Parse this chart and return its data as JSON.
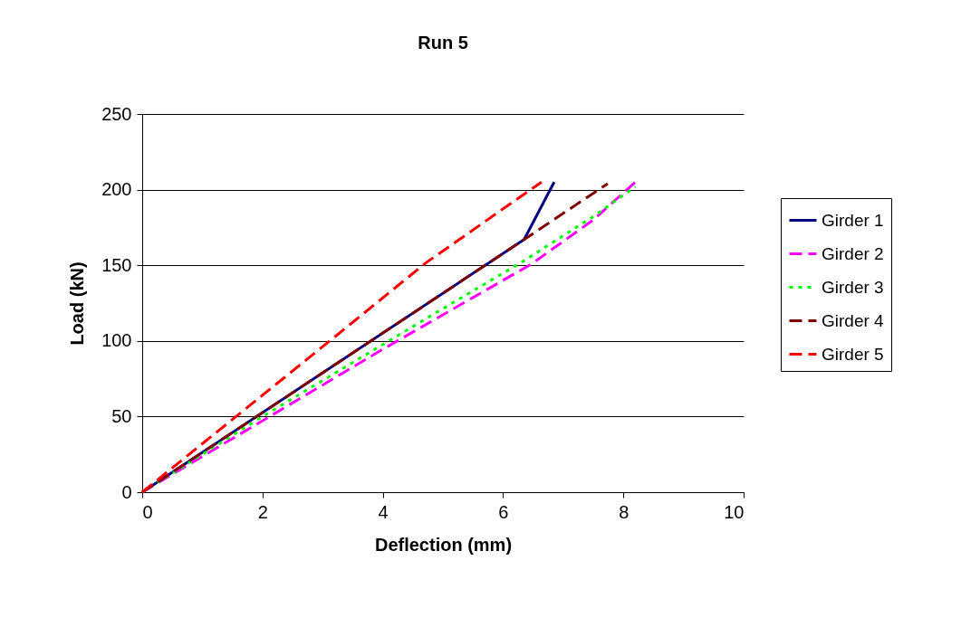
{
  "chart_data": {
    "type": "line",
    "title": "Run 5",
    "xlabel": "Deflection (mm)",
    "ylabel": "Load (kN)",
    "xlim": [
      0,
      10
    ],
    "xticks": [
      0,
      2,
      4,
      6,
      8,
      10
    ],
    "ylim": [
      0,
      250
    ],
    "yticks": [
      0,
      50,
      100,
      150,
      200,
      250
    ],
    "grid": "y",
    "legend": "right",
    "marker": "none",
    "series": [
      {
        "name": "Girder 1",
        "color": "#000080",
        "line_style": "solid",
        "x": [
          0,
          6.35,
          6.85
        ],
        "values": [
          0,
          167,
          205
        ]
      },
      {
        "name": "Girder 2",
        "color": "#ff00ff",
        "line_style": "dashed",
        "x": [
          0,
          1.99,
          3.98,
          6.48,
          7.5,
          8.2
        ],
        "values": [
          0,
          47,
          94,
          151,
          180,
          205
        ]
      },
      {
        "name": "Girder 3",
        "color": "#00ff00",
        "line_style": "dotted",
        "x": [
          0,
          2,
          4.9,
          6.35,
          7.53,
          8.2
        ],
        "values": [
          0,
          50,
          119,
          153,
          183,
          202
        ]
      },
      {
        "name": "Girder 4",
        "color": "#800000",
        "line_style": "dashed",
        "x": [
          0,
          6.35,
          7.74
        ],
        "values": [
          0,
          167,
          204
        ]
      },
      {
        "name": "Girder 5",
        "color": "#ff0000",
        "line_style": "dashed",
        "x": [
          0,
          1.56,
          3.18,
          4.73,
          6.64
        ],
        "values": [
          0,
          50,
          102,
          152,
          205
        ]
      }
    ]
  }
}
